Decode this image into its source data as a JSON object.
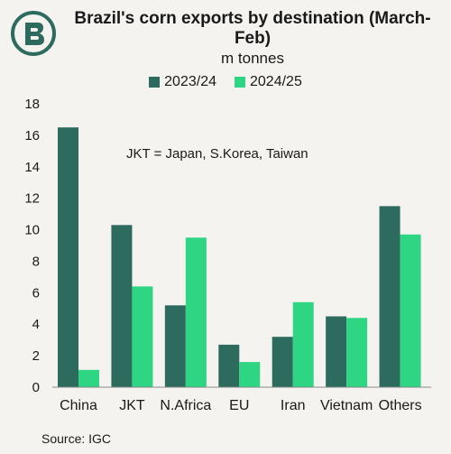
{
  "colors": {
    "background": "#f4f3ef",
    "series_2023_24": "#2e6b5f",
    "series_2024_25": "#2ed684",
    "logo": "#2e6b5f"
  },
  "icon": "brand-logo-icon",
  "chart_data": {
    "type": "bar",
    "title": "Brazil's corn exports by destination (March-Feb)",
    "subtitle": "m tonnes",
    "categories": [
      "China",
      "JKT",
      "N.Africa",
      "EU",
      "Iran",
      "Vietnam",
      "Others"
    ],
    "series": [
      {
        "name": "2023/24",
        "values": [
          16.5,
          10.3,
          5.2,
          2.7,
          3.2,
          4.5,
          11.5
        ]
      },
      {
        "name": "2024/25",
        "values": [
          1.1,
          6.4,
          9.5,
          1.6,
          5.4,
          4.4,
          9.7
        ]
      }
    ],
    "ylim": [
      0,
      18
    ],
    "yticks": [
      0,
      2,
      4,
      6,
      8,
      10,
      12,
      14,
      16,
      18
    ],
    "grid": false,
    "legend_position": "top",
    "annotation": "JKT = Japan, S.Korea, Taiwan",
    "source": "Source: IGC"
  }
}
